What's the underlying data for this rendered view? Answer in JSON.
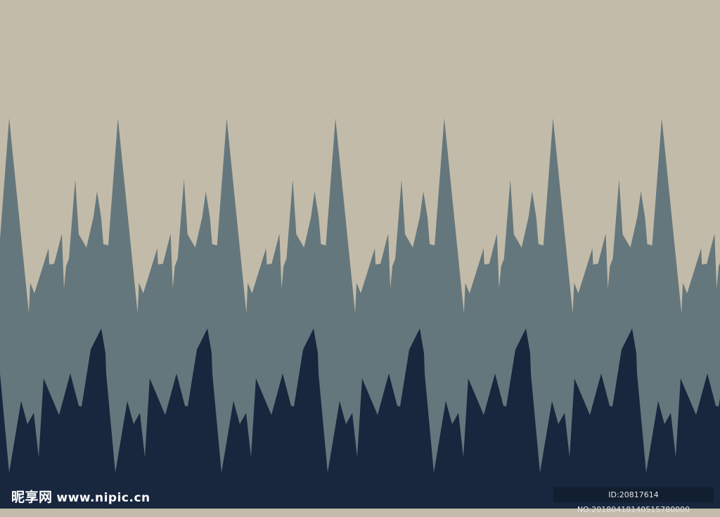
{
  "colors": {
    "sky": "#c3bba9",
    "mid_layer": "#64777c",
    "front_layer": "#18263e"
  },
  "watermark": {
    "brand": "昵享网",
    "url": "www.nipic.cn",
    "id_text": "ID:20817614 NO:20180418140515780000"
  }
}
